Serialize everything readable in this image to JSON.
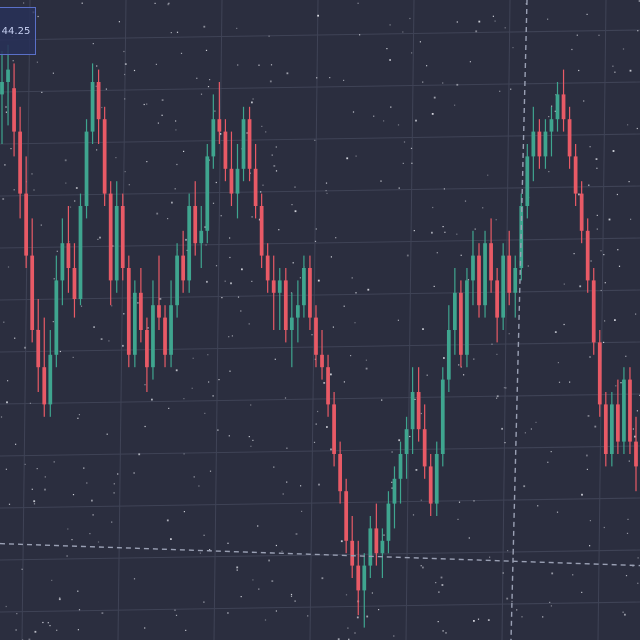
{
  "colors": {
    "background": "#2b2e3f",
    "grid": "#3f4356",
    "up": "#3fa58f",
    "down": "#e85a66",
    "crosshair": "#9aa0b4",
    "price_tag_border": "#5a70c8",
    "speckle": "#e9ebf2"
  },
  "price_tag": {
    "text": "44.25"
  },
  "chart_data": {
    "type": "candlestick",
    "title": "",
    "xlabel": "",
    "ylabel": "",
    "grid": true,
    "ylim": [
      0,
      100
    ],
    "crosshair": {
      "price": 12
    },
    "candles": [
      {
        "o": 88,
        "h": 95,
        "l": 80,
        "c": 90
      },
      {
        "o": 90,
        "h": 96,
        "l": 83,
        "c": 92
      },
      {
        "o": 89,
        "h": 93,
        "l": 78,
        "c": 82
      },
      {
        "o": 82,
        "h": 86,
        "l": 68,
        "c": 72
      },
      {
        "o": 72,
        "h": 78,
        "l": 60,
        "c": 62
      },
      {
        "o": 62,
        "h": 68,
        "l": 48,
        "c": 50
      },
      {
        "o": 50,
        "h": 55,
        "l": 40,
        "c": 44
      },
      {
        "o": 44,
        "h": 52,
        "l": 36,
        "c": 38
      },
      {
        "o": 38,
        "h": 50,
        "l": 36,
        "c": 46
      },
      {
        "o": 46,
        "h": 62,
        "l": 44,
        "c": 58
      },
      {
        "o": 58,
        "h": 68,
        "l": 54,
        "c": 64
      },
      {
        "o": 64,
        "h": 70,
        "l": 56,
        "c": 60
      },
      {
        "o": 60,
        "h": 64,
        "l": 52,
        "c": 55
      },
      {
        "o": 55,
        "h": 72,
        "l": 54,
        "c": 70
      },
      {
        "o": 70,
        "h": 84,
        "l": 68,
        "c": 82
      },
      {
        "o": 82,
        "h": 93,
        "l": 80,
        "c": 90
      },
      {
        "o": 90,
        "h": 92,
        "l": 80,
        "c": 84
      },
      {
        "o": 84,
        "h": 86,
        "l": 70,
        "c": 72
      },
      {
        "o": 72,
        "h": 74,
        "l": 54,
        "c": 58
      },
      {
        "o": 58,
        "h": 74,
        "l": 56,
        "c": 70
      },
      {
        "o": 70,
        "h": 72,
        "l": 58,
        "c": 60
      },
      {
        "o": 60,
        "h": 62,
        "l": 44,
        "c": 46
      },
      {
        "o": 46,
        "h": 58,
        "l": 44,
        "c": 56
      },
      {
        "o": 56,
        "h": 60,
        "l": 48,
        "c": 50
      },
      {
        "o": 50,
        "h": 52,
        "l": 40,
        "c": 44
      },
      {
        "o": 44,
        "h": 58,
        "l": 42,
        "c": 54
      },
      {
        "o": 54,
        "h": 62,
        "l": 50,
        "c": 52
      },
      {
        "o": 52,
        "h": 54,
        "l": 44,
        "c": 46
      },
      {
        "o": 46,
        "h": 58,
        "l": 44,
        "c": 54
      },
      {
        "o": 54,
        "h": 64,
        "l": 52,
        "c": 62
      },
      {
        "o": 62,
        "h": 66,
        "l": 56,
        "c": 58
      },
      {
        "o": 58,
        "h": 72,
        "l": 56,
        "c": 70
      },
      {
        "o": 70,
        "h": 74,
        "l": 62,
        "c": 64
      },
      {
        "o": 64,
        "h": 70,
        "l": 60,
        "c": 66
      },
      {
        "o": 66,
        "h": 80,
        "l": 64,
        "c": 78
      },
      {
        "o": 78,
        "h": 88,
        "l": 76,
        "c": 84
      },
      {
        "o": 84,
        "h": 90,
        "l": 80,
        "c": 82
      },
      {
        "o": 82,
        "h": 84,
        "l": 74,
        "c": 76
      },
      {
        "o": 76,
        "h": 82,
        "l": 70,
        "c": 72
      },
      {
        "o": 72,
        "h": 80,
        "l": 68,
        "c": 76
      },
      {
        "o": 76,
        "h": 86,
        "l": 74,
        "c": 84
      },
      {
        "o": 84,
        "h": 86,
        "l": 74,
        "c": 76
      },
      {
        "o": 76,
        "h": 80,
        "l": 68,
        "c": 70
      },
      {
        "o": 70,
        "h": 72,
        "l": 60,
        "c": 62
      },
      {
        "o": 62,
        "h": 64,
        "l": 56,
        "c": 58
      },
      {
        "o": 58,
        "h": 62,
        "l": 50,
        "c": 56
      },
      {
        "o": 56,
        "h": 60,
        "l": 50,
        "c": 58
      },
      {
        "o": 58,
        "h": 60,
        "l": 48,
        "c": 50
      },
      {
        "o": 50,
        "h": 56,
        "l": 44,
        "c": 52
      },
      {
        "o": 52,
        "h": 58,
        "l": 48,
        "c": 54
      },
      {
        "o": 54,
        "h": 62,
        "l": 52,
        "c": 60
      },
      {
        "o": 60,
        "h": 62,
        "l": 50,
        "c": 52
      },
      {
        "o": 52,
        "h": 54,
        "l": 44,
        "c": 46
      },
      {
        "o": 46,
        "h": 50,
        "l": 42,
        "c": 44
      },
      {
        "o": 44,
        "h": 46,
        "l": 36,
        "c": 38
      },
      {
        "o": 38,
        "h": 40,
        "l": 28,
        "c": 30
      },
      {
        "o": 30,
        "h": 32,
        "l": 22,
        "c": 24
      },
      {
        "o": 24,
        "h": 26,
        "l": 14,
        "c": 16
      },
      {
        "o": 16,
        "h": 20,
        "l": 10,
        "c": 12
      },
      {
        "o": 12,
        "h": 16,
        "l": 4,
        "c": 8
      },
      {
        "o": 8,
        "h": 14,
        "l": 2,
        "c": 12
      },
      {
        "o": 12,
        "h": 20,
        "l": 10,
        "c": 18
      },
      {
        "o": 18,
        "h": 22,
        "l": 12,
        "c": 14
      },
      {
        "o": 14,
        "h": 18,
        "l": 10,
        "c": 16
      },
      {
        "o": 16,
        "h": 24,
        "l": 14,
        "c": 22
      },
      {
        "o": 22,
        "h": 28,
        "l": 18,
        "c": 26
      },
      {
        "o": 26,
        "h": 32,
        "l": 22,
        "c": 30
      },
      {
        "o": 30,
        "h": 36,
        "l": 26,
        "c": 34
      },
      {
        "o": 34,
        "h": 44,
        "l": 30,
        "c": 40
      },
      {
        "o": 40,
        "h": 44,
        "l": 32,
        "c": 34
      },
      {
        "o": 34,
        "h": 38,
        "l": 26,
        "c": 28
      },
      {
        "o": 28,
        "h": 30,
        "l": 20,
        "c": 22
      },
      {
        "o": 22,
        "h": 32,
        "l": 20,
        "c": 30
      },
      {
        "o": 30,
        "h": 44,
        "l": 28,
        "c": 42
      },
      {
        "o": 42,
        "h": 54,
        "l": 40,
        "c": 50
      },
      {
        "o": 50,
        "h": 60,
        "l": 46,
        "c": 56
      },
      {
        "o": 56,
        "h": 58,
        "l": 44,
        "c": 46
      },
      {
        "o": 46,
        "h": 60,
        "l": 44,
        "c": 58
      },
      {
        "o": 58,
        "h": 66,
        "l": 54,
        "c": 62
      },
      {
        "o": 62,
        "h": 64,
        "l": 52,
        "c": 54
      },
      {
        "o": 54,
        "h": 66,
        "l": 52,
        "c": 64
      },
      {
        "o": 64,
        "h": 68,
        "l": 56,
        "c": 58
      },
      {
        "o": 58,
        "h": 60,
        "l": 48,
        "c": 52
      },
      {
        "o": 52,
        "h": 64,
        "l": 50,
        "c": 62
      },
      {
        "o": 62,
        "h": 66,
        "l": 54,
        "c": 56
      },
      {
        "o": 56,
        "h": 62,
        "l": 52,
        "c": 60
      },
      {
        "o": 60,
        "h": 72,
        "l": 58,
        "c": 70
      },
      {
        "o": 70,
        "h": 80,
        "l": 68,
        "c": 78
      },
      {
        "o": 78,
        "h": 86,
        "l": 74,
        "c": 82
      },
      {
        "o": 82,
        "h": 84,
        "l": 76,
        "c": 78
      },
      {
        "o": 78,
        "h": 84,
        "l": 76,
        "c": 82
      },
      {
        "o": 82,
        "h": 86,
        "l": 78,
        "c": 84
      },
      {
        "o": 84,
        "h": 90,
        "l": 82,
        "c": 88
      },
      {
        "o": 88,
        "h": 92,
        "l": 82,
        "c": 84
      },
      {
        "o": 84,
        "h": 86,
        "l": 76,
        "c": 78
      },
      {
        "o": 78,
        "h": 80,
        "l": 70,
        "c": 72
      },
      {
        "o": 72,
        "h": 74,
        "l": 64,
        "c": 66
      },
      {
        "o": 66,
        "h": 68,
        "l": 56,
        "c": 58
      },
      {
        "o": 58,
        "h": 60,
        "l": 46,
        "c": 48
      },
      {
        "o": 48,
        "h": 50,
        "l": 36,
        "c": 38
      },
      {
        "o": 38,
        "h": 40,
        "l": 28,
        "c": 30
      },
      {
        "o": 30,
        "h": 40,
        "l": 28,
        "c": 38
      },
      {
        "o": 38,
        "h": 42,
        "l": 30,
        "c": 32
      },
      {
        "o": 32,
        "h": 44,
        "l": 30,
        "c": 42
      },
      {
        "o": 42,
        "h": 44,
        "l": 30,
        "c": 32
      },
      {
        "o": 32,
        "h": 36,
        "l": 24,
        "c": 28
      }
    ]
  }
}
